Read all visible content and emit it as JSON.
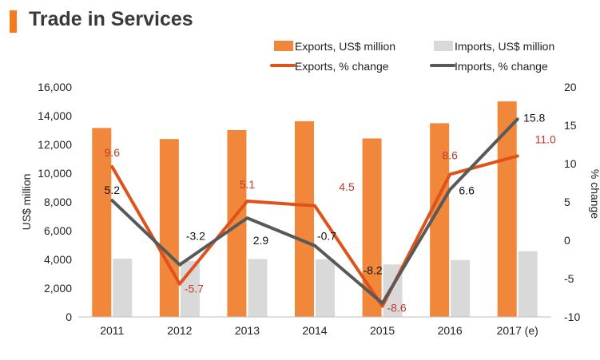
{
  "header": {
    "title": "Trade in Services"
  },
  "chart_data": {
    "type": "bar+line",
    "title": "Trade in Services",
    "categories": [
      "2011",
      "2012",
      "2013",
      "2014",
      "2015",
      "2016",
      "2017 (e)"
    ],
    "series": [
      {
        "name": "Exports, US$ million",
        "kind": "bar",
        "axis": "left",
        "color": "#f0873b",
        "values": [
          13150,
          12380,
          13000,
          13620,
          12420,
          13480,
          15000
        ]
      },
      {
        "name": "Imports, US$ million",
        "kind": "bar",
        "axis": "left",
        "color": "#d9d9d9",
        "values": [
          4050,
          3900,
          4030,
          4010,
          3650,
          3960,
          4570
        ]
      },
      {
        "name": "Exports, % change",
        "kind": "line",
        "axis": "right",
        "color": "#e0521b",
        "values": [
          9.6,
          -5.7,
          5.1,
          4.5,
          -8.6,
          8.6,
          11.0
        ],
        "labels": [
          "9.6",
          "-5.7",
          "5.1",
          "4.5",
          "-8.6",
          "8.6",
          "11.0"
        ]
      },
      {
        "name": "Imports, % change",
        "kind": "line",
        "axis": "right",
        "color": "#595959",
        "values": [
          5.2,
          -3.2,
          2.9,
          -0.7,
          -8.2,
          6.6,
          15.8
        ],
        "labels": [
          "5.2",
          "-3.2",
          "2.9",
          "-0.7",
          "-8.2",
          "6.6",
          "15.8"
        ]
      }
    ],
    "ylabel": "US$ million",
    "ylim": [
      0,
      16000
    ],
    "yticks": [
      0,
      2000,
      4000,
      6000,
      8000,
      10000,
      12000,
      14000,
      16000
    ],
    "ytick_labels": [
      "0",
      "2,000",
      "4,000",
      "6,000",
      "8,000",
      "10,000",
      "12,000",
      "14,000",
      "16,000"
    ],
    "y2label": "% change",
    "y2lim": [
      -10,
      20
    ],
    "y2ticks": [
      -10,
      -5,
      0,
      5,
      10,
      15,
      20
    ],
    "y2tick_labels": [
      "-10",
      "-5",
      "0",
      "5",
      "10",
      "15",
      "20"
    ],
    "grid": false,
    "legend_position": "top-right"
  }
}
